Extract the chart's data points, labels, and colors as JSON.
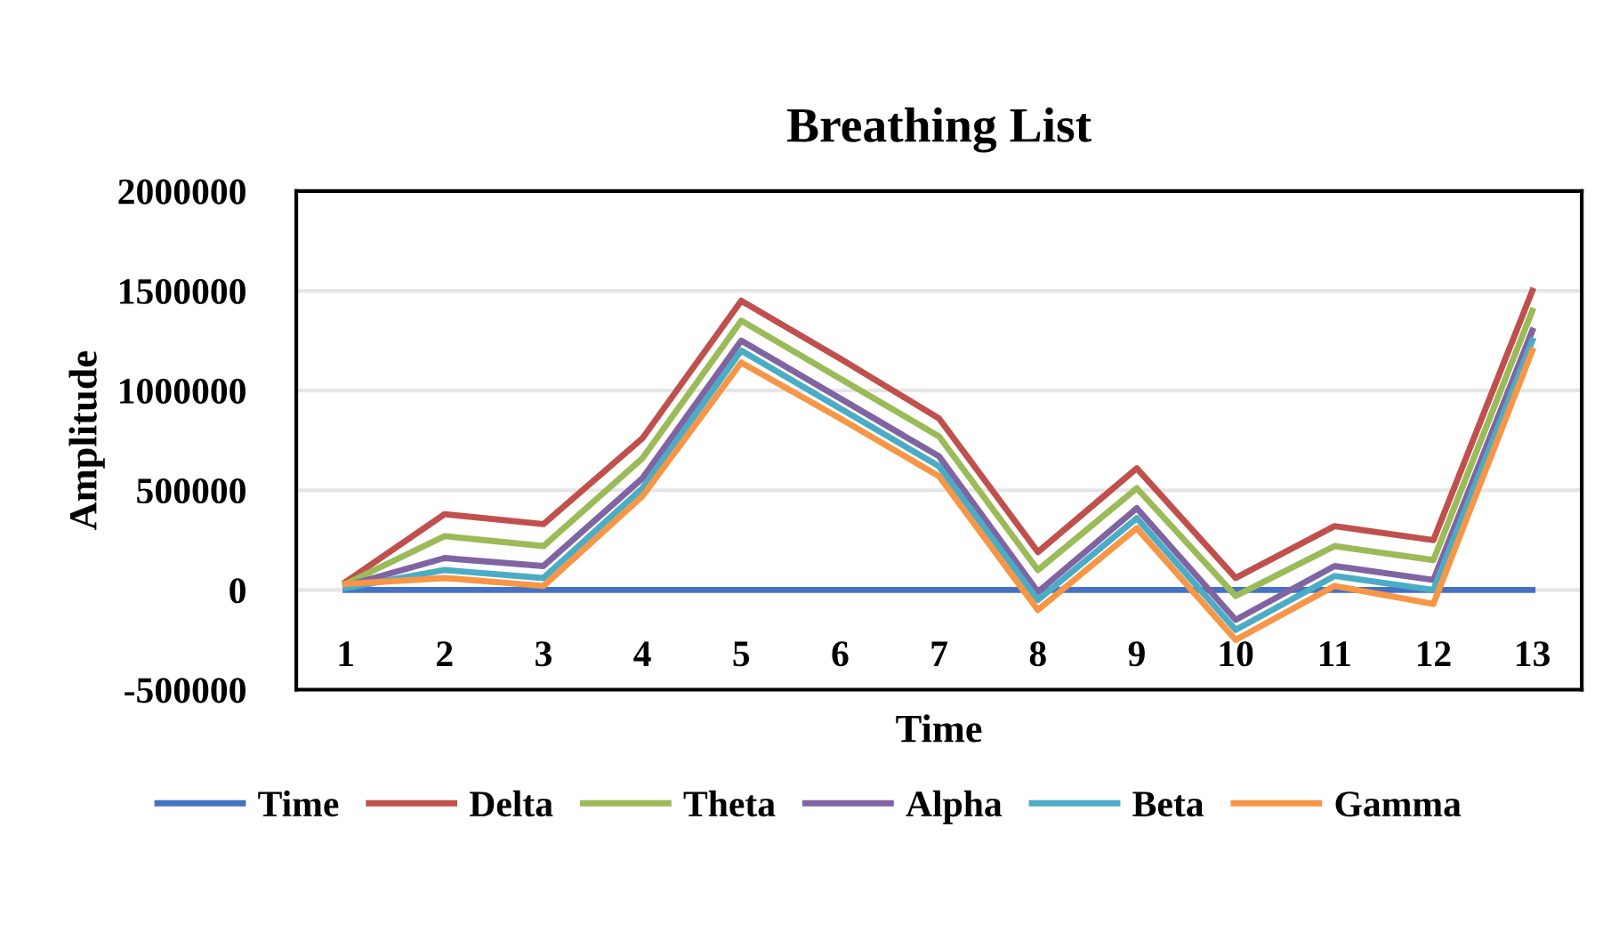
{
  "chart_data": {
    "type": "line",
    "title": "Breathing List",
    "xlabel": "Time",
    "ylabel": "Amplitude",
    "categories": [
      "1",
      "2",
      "3",
      "4",
      "5",
      "6",
      "7",
      "8",
      "9",
      "10",
      "11",
      "12",
      "13"
    ],
    "ylim": [
      -500000,
      2000000
    ],
    "yticks": [
      -500000,
      0,
      500000,
      1000000,
      1500000,
      2000000
    ],
    "grid": "y",
    "legend": "bottom",
    "marker": "none",
    "line_style": "solid",
    "series": [
      {
        "name": "Time",
        "color": "#4472c4",
        "values": [
          0,
          0,
          0,
          0,
          0,
          0,
          0,
          0,
          0,
          0,
          0,
          0,
          0
        ]
      },
      {
        "name": "Delta",
        "color": "#c0504d",
        "values": [
          40000,
          380000,
          330000,
          760000,
          1450000,
          1160000,
          860000,
          190000,
          610000,
          60000,
          320000,
          250000,
          1500000
        ]
      },
      {
        "name": "Theta",
        "color": "#9bbb59",
        "values": [
          30000,
          270000,
          220000,
          660000,
          1350000,
          1060000,
          770000,
          100000,
          510000,
          -30000,
          220000,
          150000,
          1400000
        ]
      },
      {
        "name": "Alpha",
        "color": "#8064a2",
        "values": [
          20000,
          160000,
          120000,
          560000,
          1250000,
          960000,
          670000,
          -10000,
          410000,
          -150000,
          120000,
          50000,
          1300000
        ]
      },
      {
        "name": "Beta",
        "color": "#4bacc6",
        "values": [
          10000,
          100000,
          60000,
          510000,
          1200000,
          910000,
          620000,
          -50000,
          360000,
          -200000,
          70000,
          0,
          1250000
        ]
      },
      {
        "name": "Gamma",
        "color": "#f79646",
        "values": [
          30000,
          60000,
          20000,
          470000,
          1140000,
          860000,
          570000,
          -100000,
          310000,
          -250000,
          20000,
          -70000,
          1200000
        ]
      }
    ]
  }
}
